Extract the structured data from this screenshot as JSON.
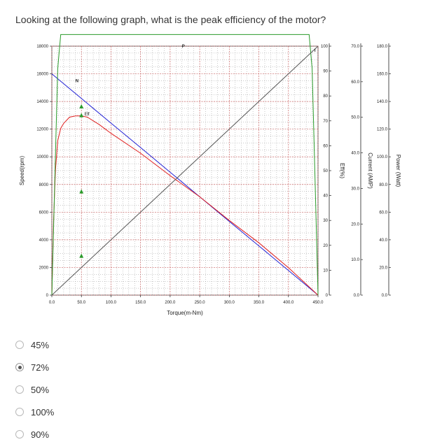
{
  "question": "Looking at the following graph, what is the peak efficiency of the motor?",
  "options": [
    {
      "label": "45%",
      "selected": false
    },
    {
      "label": "72%",
      "selected": true
    },
    {
      "label": "50%",
      "selected": false
    },
    {
      "label": "100%",
      "selected": false
    },
    {
      "label": "90%",
      "selected": false
    }
  ],
  "chart_data": {
    "type": "line",
    "xlabel": "Torque(m-Nm)",
    "xlim": [
      0,
      450
    ],
    "x_ticks": [
      "0.0",
      "50.0",
      "100.0",
      "150.0",
      "200.0",
      "250.0",
      "300.0",
      "350.0",
      "400.0",
      "450.0"
    ],
    "y_axes": [
      {
        "label": "Speed(rpm)",
        "lim": [
          0,
          18000
        ],
        "ticks": [
          "0",
          "2000",
          "4000",
          "6000",
          "8000",
          "10000",
          "12000",
          "14000",
          "16000",
          "18000"
        ]
      },
      {
        "label": "Eff(%)",
        "lim": [
          0,
          100
        ],
        "ticks": [
          "0",
          "10",
          "20",
          "30",
          "40",
          "50",
          "60",
          "70",
          "80",
          "90",
          "100"
        ],
        "color": "#000000"
      },
      {
        "label": "Current (AMP)",
        "lim": [
          0,
          70
        ],
        "ticks": [
          "0.0",
          "10.0",
          "20.0",
          "30.0",
          "40.0",
          "50.0",
          "60.0",
          "70.0"
        ],
        "color": "#c000c0"
      },
      {
        "label": "Power (Watt)",
        "lim": [
          0,
          180
        ],
        "ticks": [
          "0.0",
          "20.0",
          "40.0",
          "60.0",
          "80.0",
          "100.0",
          "120.0",
          "140.0",
          "160.0",
          "180.0"
        ],
        "color": "#8000ff"
      }
    ],
    "grid": true,
    "series": [
      {
        "name": "N",
        "axis": "Speed(rpm)",
        "color": "#2323d6",
        "x": [
          0,
          50,
          100,
          150,
          200,
          250,
          300,
          350,
          400,
          450
        ],
        "y": [
          16000,
          14220,
          12440,
          10670,
          8890,
          7110,
          5330,
          3560,
          1780,
          0
        ]
      },
      {
        "name": "Eff",
        "axis": "Eff(%)",
        "color": "#e02020",
        "x": [
          0,
          3,
          6,
          10,
          15,
          20,
          30,
          40,
          50,
          60,
          80,
          100,
          150,
          200,
          250,
          300,
          350,
          400,
          450
        ],
        "y": [
          0,
          30,
          50,
          62,
          67,
          69,
          71.5,
          72,
          72,
          71.5,
          68.5,
          65,
          57,
          48,
          39.5,
          30,
          21,
          11,
          0
        ]
      },
      {
        "name": "P",
        "axis": "Power (Watt)",
        "color": "#2a9a2a",
        "x": [
          0,
          50,
          100,
          150,
          200,
          225,
          250,
          300,
          350,
          400,
          450
        ],
        "y": [
          0,
          74.5,
          130.2,
          167.5,
          186.2,
          188.4,
          186.2,
          167.5,
          130.2,
          74.5,
          0
        ]
      },
      {
        "name": "I",
        "axis": "Current (AMP)",
        "color": "#555555",
        "x": [
          0,
          450
        ],
        "y": [
          0,
          70
        ]
      }
    ],
    "annotations": [
      "N",
      "Eff",
      "P",
      "I"
    ]
  }
}
